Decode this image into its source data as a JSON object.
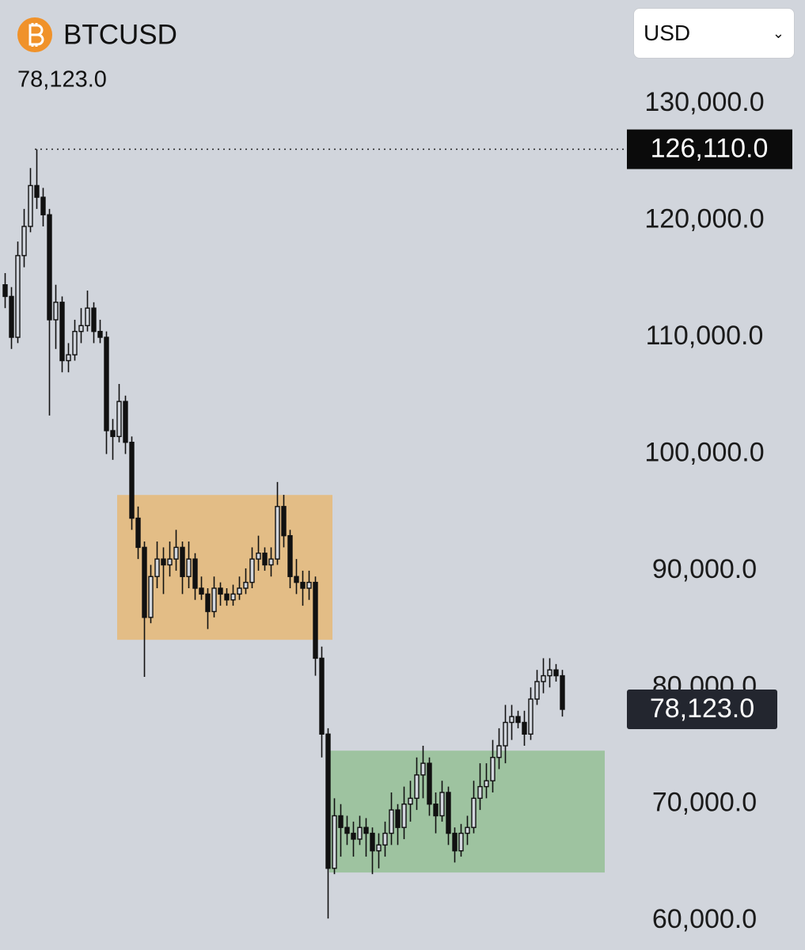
{
  "controls": {
    "currency": "USD"
  },
  "chart_data": {
    "type": "candlestick",
    "symbol": "BTCUSD",
    "last_price": {
      "value": 78123,
      "label": "78,123.0"
    },
    "ath": {
      "value": 126110,
      "label": "126,110.0"
    },
    "ylim": [
      57500,
      138900
    ],
    "yticks": [
      {
        "value": 60000,
        "label": "60,000.0"
      },
      {
        "value": 70000,
        "label": "70,000.0"
      },
      {
        "value": 80000,
        "label": "80,000.0"
      },
      {
        "value": 90000,
        "label": "90,000.0"
      },
      {
        "value": 100000,
        "label": "100,000.0"
      },
      {
        "value": 110000,
        "label": "110,000.0"
      },
      {
        "value": 120000,
        "label": "120,000.0"
      },
      {
        "value": 130000,
        "label": "130,000.0"
      }
    ],
    "grid": false,
    "color": "#111111",
    "zones": [
      {
        "x": [
          18,
          52
        ],
        "y": [
          84080,
          96490
        ],
        "color": "#e3bd86"
      },
      {
        "x": [
          51.5,
          95
        ],
        "y": [
          64140,
          74580
        ],
        "color": "#9ec3a0"
      }
    ],
    "open": [
      114500,
      113500,
      110000,
      117000,
      119500,
      123000,
      122000,
      120500,
      111500,
      113000,
      108000,
      108500,
      110500,
      111000,
      112500,
      110500,
      110000,
      102000,
      101500,
      104500,
      101000,
      94500,
      92000,
      86000,
      89500,
      91000,
      90500,
      91000,
      92000,
      89500,
      91000,
      88500,
      88000,
      86500,
      88500,
      88000,
      87500,
      88000,
      88500,
      89000,
      91000,
      91500,
      90500,
      91000,
      95500,
      93000,
      89500,
      89000,
      88500,
      89000,
      82500,
      76000,
      64500,
      69000,
      68000,
      67500,
      67000,
      68000,
      67500,
      66000,
      66500,
      67500,
      69500,
      68000,
      70000,
      70500,
      72500,
      73500,
      70000,
      69000,
      71000,
      67500,
      66000,
      67500,
      68000,
      70500,
      71500,
      72000,
      74000,
      75000,
      77000,
      77500,
      77000,
      76000,
      79000,
      80500,
      81000,
      81500,
      81000
    ],
    "high": [
      115500,
      114300,
      118200,
      121000,
      124500,
      126110,
      122800,
      121000,
      114500,
      113500,
      109500,
      111500,
      112500,
      114000,
      113000,
      111500,
      110500,
      103000,
      106000,
      105000,
      101500,
      95500,
      92500,
      90500,
      92500,
      92000,
      92500,
      93500,
      92500,
      92500,
      91500,
      89500,
      88500,
      89500,
      89000,
      88500,
      88800,
      89500,
      90200,
      92000,
      93000,
      92000,
      92000,
      97600,
      96500,
      93500,
      91000,
      90000,
      90000,
      89500,
      83500,
      76500,
      70500,
      70000,
      69000,
      68500,
      69000,
      68800,
      68000,
      67500,
      68500,
      71000,
      70000,
      71500,
      72000,
      74000,
      75000,
      74000,
      71000,
      72000,
      71500,
      68000,
      68300,
      69000,
      72000,
      73500,
      73500,
      75500,
      76500,
      78500,
      78500,
      78000,
      78000,
      80000,
      81500,
      82500,
      82500,
      82000,
      81500
    ],
    "low": [
      112500,
      109000,
      109500,
      116000,
      119000,
      121000,
      119500,
      103300,
      109000,
      107000,
      107000,
      108000,
      109500,
      110500,
      109500,
      109500,
      100000,
      99500,
      101000,
      100000,
      93500,
      91000,
      80900,
      85500,
      88500,
      88000,
      89500,
      90000,
      88000,
      88500,
      87500,
      87500,
      85000,
      86000,
      87000,
      87000,
      87000,
      87500,
      88000,
      88500,
      90000,
      90000,
      89500,
      90500,
      92000,
      88500,
      88000,
      87000,
      87500,
      81000,
      74000,
      60200,
      64000,
      65500,
      66500,
      65500,
      66500,
      65500,
      64000,
      64500,
      65500,
      66500,
      66500,
      67000,
      68500,
      69500,
      70500,
      69000,
      67500,
      68500,
      66500,
      65000,
      65500,
      66500,
      67500,
      69500,
      70500,
      71000,
      73000,
      73500,
      75500,
      76500,
      75000,
      75500,
      78500,
      79500,
      80000,
      80500,
      77500
    ],
    "close": [
      113500,
      110000,
      117000,
      119500,
      123000,
      122000,
      120500,
      111500,
      113000,
      108000,
      108500,
      110500,
      111000,
      112500,
      110500,
      110000,
      102000,
      101500,
      104500,
      101000,
      94500,
      92000,
      86000,
      89500,
      91000,
      90500,
      91000,
      92000,
      89500,
      91000,
      88500,
      88000,
      86500,
      88500,
      88000,
      87500,
      88000,
      88500,
      89000,
      91000,
      91500,
      90500,
      91000,
      95500,
      93000,
      89500,
      89000,
      88500,
      89000,
      82500,
      76000,
      64500,
      69000,
      68000,
      67500,
      67000,
      68000,
      67500,
      66000,
      66500,
      67500,
      69500,
      68000,
      70000,
      70500,
      72500,
      73500,
      70000,
      69000,
      71000,
      67500,
      66000,
      67500,
      68000,
      70500,
      71500,
      72000,
      74000,
      75000,
      77000,
      77500,
      77000,
      76000,
      79000,
      80500,
      81000,
      81500,
      81000,
      78123
    ]
  }
}
